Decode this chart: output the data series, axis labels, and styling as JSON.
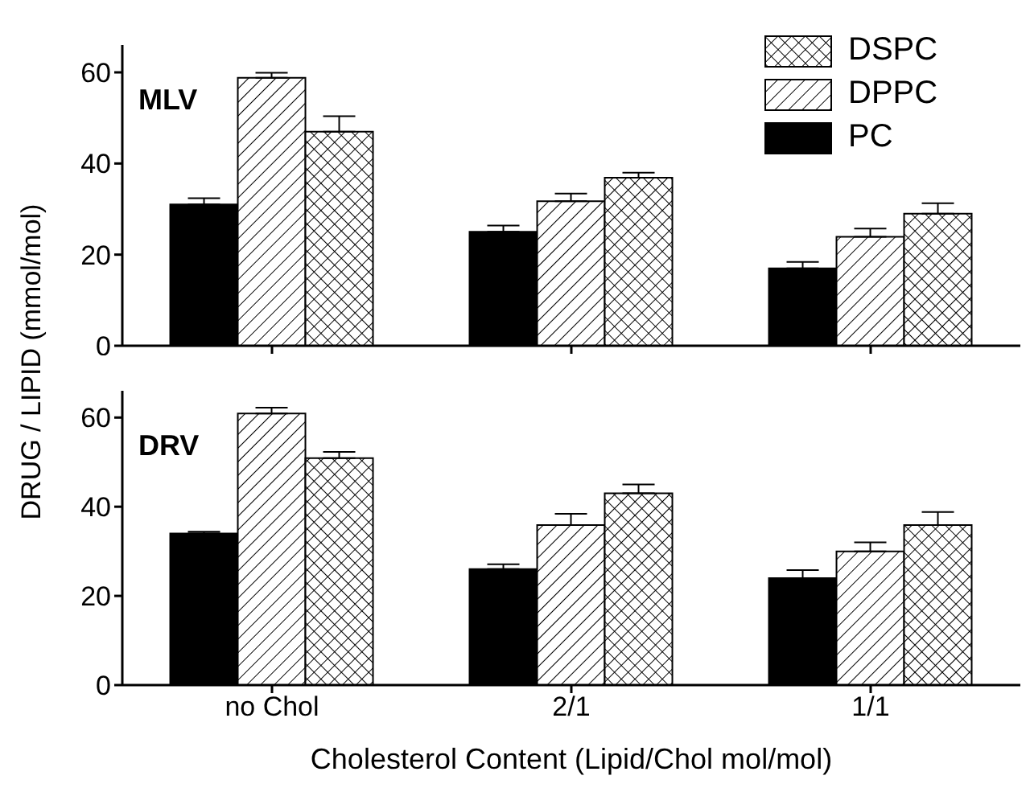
{
  "chart_data": [
    {
      "type": "bar",
      "title": "MLV",
      "ylabel": "DRUG / LIPID (mmol/mol)",
      "categories": [
        null,
        null,
        null
      ],
      "ylim": [
        0,
        66
      ],
      "yticks": [
        0,
        20,
        40,
        60
      ],
      "legend": "top right",
      "tick_labels": "y",
      "series": [
        {
          "name": "PC",
          "color": "#000000",
          "values": [
            31,
            25,
            17
          ],
          "errors": [
            [
              31,
              32.4
            ],
            [
              25,
              26.4
            ],
            [
              17,
              18.4
            ]
          ]
        },
        {
          "name": "DPPC",
          "color": "#000000",
          "values": [
            58.8,
            31.7,
            23.9
          ],
          "errors": [
            [
              58.8,
              59.9
            ],
            [
              31.7,
              33.4
            ],
            [
              23.9,
              25.7
            ]
          ]
        },
        {
          "name": "DSPC",
          "color": "#000000",
          "values": [
            47,
            36.9,
            29
          ],
          "errors": [
            [
              47,
              50.4
            ],
            [
              36.9,
              38
            ],
            [
              29,
              31.3
            ]
          ]
        }
      ]
    },
    {
      "type": "bar",
      "title": "DRV",
      "xlabel": "Cholesterol Content (Lipid/Chol mol/mol)",
      "categories": [
        "no Chol",
        "2/1",
        "1/1"
      ],
      "ylim": [
        0,
        66
      ],
      "yticks": [
        0,
        20,
        40,
        60
      ],
      "series": [
        {
          "color": "#000000",
          "values": [
            34,
            26,
            24
          ],
          "errors": [
            [
              34,
              34.4
            ],
            [
              26,
              27.1
            ],
            [
              24,
              25.8
            ]
          ]
        },
        {
          "color": "#000000",
          "values": [
            60.9,
            35.9,
            30
          ],
          "errors": [
            [
              60.9,
              62.2
            ],
            [
              35.9,
              38.4
            ],
            [
              30,
              32
            ]
          ]
        },
        {
          "color": "#000000",
          "values": [
            50.9,
            43,
            35.9
          ],
          "errors": [
            [
              50.9,
              52.3
            ],
            [
              43,
              45
            ],
            [
              35.9,
              38.8
            ]
          ]
        }
      ]
    }
  ]
}
